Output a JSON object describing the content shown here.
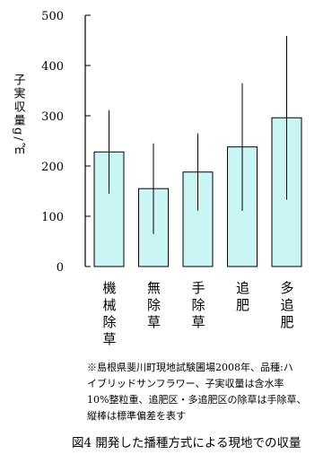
{
  "chart_data": {
    "type": "bar",
    "y_label": "子実収量g/㎡",
    "categories": [
      "機械除草",
      "無除草",
      "手除草",
      "追肥",
      "多追肥"
    ],
    "values": [
      228,
      155,
      188,
      238,
      296
    ],
    "errors": [
      83,
      90,
      77,
      127,
      163
    ],
    "color": "#c9f5f5",
    "ylim": [
      0,
      500
    ],
    "yticks": [
      0,
      100,
      200,
      300,
      400,
      500
    ],
    "note": [
      "※島根県斐川町現地試験圃場2008年、品種:ハ",
      "イブリッドサンフラワー、子実収量は含水率",
      "10%整粒重、追肥区・多追肥区の除草は手除草、",
      "縦棒は標準偏差を表す"
    ],
    "caption": "図4 開発した播種方式による現地での収量"
  }
}
